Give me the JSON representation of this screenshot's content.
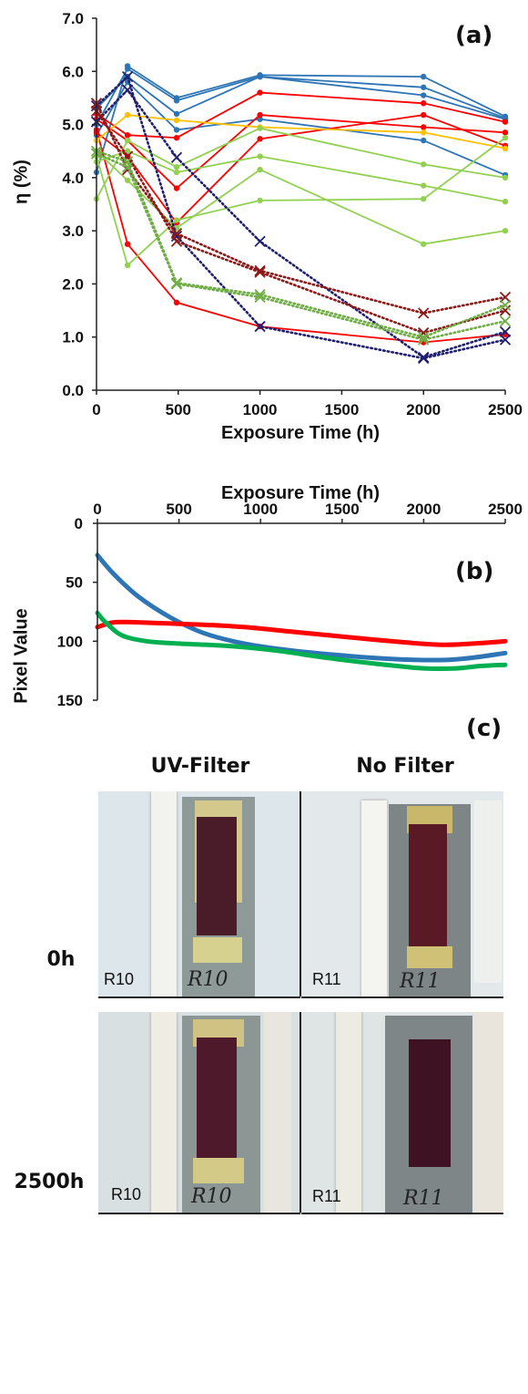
{
  "chart_data": [
    {
      "panel": "(a)",
      "type": "line",
      "xlabel": "Exposure Time (h)",
      "ylabel": "η (%)",
      "xlim": [
        0,
        2500
      ],
      "ylim": [
        0,
        7
      ],
      "xticks": [
        0,
        500,
        1000,
        1500,
        2000,
        2500
      ],
      "yticks": [
        "0.0",
        "1.0",
        "2.0",
        "3.0",
        "4.0",
        "5.0",
        "6.0",
        "7.0"
      ],
      "x": [
        0,
        190,
        490,
        1000,
        2000,
        2500
      ],
      "series": [
        {
          "color": "#2e75b6",
          "style": "solid",
          "values": [
            4.1,
            6.1,
            5.5,
            5.93,
            5.9,
            5.15
          ]
        },
        {
          "color": "#2e75b6",
          "style": "solid",
          "values": [
            5.0,
            6.05,
            5.45,
            5.9,
            5.7,
            5.12
          ]
        },
        {
          "color": "#2e75b6",
          "style": "solid",
          "values": [
            5.3,
            5.9,
            5.2,
            5.9,
            5.55,
            5.1
          ]
        },
        {
          "color": "#2e75b6",
          "style": "solid",
          "values": [
            4.8,
            5.8,
            4.9,
            5.1,
            4.7,
            4.05
          ]
        },
        {
          "color": "#ff0000",
          "style": "solid",
          "values": [
            5.2,
            4.8,
            4.75,
            5.6,
            5.4,
            5.05
          ]
        },
        {
          "color": "#ff0000",
          "style": "solid",
          "values": [
            5.1,
            4.7,
            3.8,
            5.18,
            4.95,
            4.85
          ]
        },
        {
          "color": "#ff0000",
          "style": "solid",
          "values": [
            4.85,
            4.4,
            3.15,
            4.73,
            5.18,
            4.6
          ]
        },
        {
          "color": "#ff0000",
          "style": "solid",
          "values": [
            4.9,
            2.75,
            1.65,
            1.2,
            0.9,
            1.05
          ]
        },
        {
          "color": "#ffc000",
          "style": "solid",
          "values": [
            4.7,
            5.18,
            5.08,
            4.95,
            4.85,
            4.55
          ]
        },
        {
          "color": "#92d050",
          "style": "solid",
          "values": [
            3.6,
            4.7,
            4.2,
            4.93,
            4.25,
            4.0
          ]
        },
        {
          "color": "#92d050",
          "style": "solid",
          "values": [
            4.3,
            4.5,
            4.1,
            4.4,
            3.85,
            3.55
          ]
        },
        {
          "color": "#92d050",
          "style": "solid",
          "values": [
            4.5,
            3.95,
            3.05,
            4.15,
            2.75,
            3.0
          ]
        },
        {
          "color": "#92d050",
          "style": "solid",
          "values": [
            4.4,
            2.35,
            3.2,
            3.57,
            3.6,
            4.75
          ]
        },
        {
          "color": "#1f1f6e",
          "style": "dotted",
          "values": [
            5.05,
            5.65,
            4.38,
            2.8,
            0.62,
            1.1
          ]
        },
        {
          "color": "#1f1f6e",
          "style": "dotted",
          "values": [
            5.35,
            5.9,
            2.9,
            1.2,
            0.6,
            0.95
          ]
        },
        {
          "color": "#8b1a1a",
          "style": "dotted",
          "values": [
            5.4,
            4.15,
            2.95,
            2.25,
            1.45,
            1.75
          ]
        },
        {
          "color": "#8b1a1a",
          "style": "dotted",
          "values": [
            5.25,
            4.4,
            2.8,
            2.22,
            1.08,
            1.5
          ]
        },
        {
          "color": "#70ad47",
          "style": "dotted",
          "values": [
            4.5,
            4.3,
            2.02,
            1.8,
            1.0,
            1.6
          ]
        },
        {
          "color": "#70ad47",
          "style": "dotted",
          "values": [
            4.45,
            4.2,
            2.0,
            1.75,
            0.95,
            1.3
          ]
        }
      ]
    },
    {
      "panel": "(b)",
      "type": "line",
      "xlabel": "Exposure Time (h)",
      "ylabel": "Pixel Value",
      "xlim": [
        0,
        2500
      ],
      "ylim": [
        0,
        150
      ],
      "y_reversed": true,
      "xticks": [
        0,
        500,
        1000,
        1500,
        2000,
        2500
      ],
      "yticks": [
        0,
        50,
        100,
        150
      ],
      "series": [
        {
          "color": "#2e75b6",
          "x": [
            0,
            100,
            250,
            450,
            650,
            900,
            1200,
            1500,
            1800,
            2100,
            2300,
            2500
          ],
          "values": [
            27,
            43,
            62,
            80,
            93,
            102,
            108,
            112,
            115,
            116,
            114,
            110
          ]
        },
        {
          "color": "#ff0000",
          "x": [
            0,
            100,
            250,
            450,
            650,
            900,
            1200,
            1500,
            1800,
            2100,
            2300,
            2500
          ],
          "values": [
            88,
            84,
            84,
            85,
            86,
            88,
            92,
            96,
            100,
            103,
            102,
            100
          ]
        },
        {
          "color": "#00b050",
          "x": [
            0,
            50,
            150,
            300,
            500,
            800,
            1100,
            1400,
            1700,
            2000,
            2200,
            2350,
            2500
          ],
          "values": [
            76,
            84,
            95,
            100,
            102,
            104,
            108,
            114,
            119,
            123,
            123,
            121,
            120
          ]
        }
      ]
    }
  ],
  "panel_c": {
    "label": "(c)",
    "col_headers": [
      "UV-Filter",
      "No Filter"
    ],
    "row_headers": [
      "0h",
      "2500h"
    ],
    "cells": [
      {
        "tag": "R10",
        "handwriting": "R10"
      },
      {
        "tag": "R11",
        "handwriting": "R11"
      },
      {
        "tag": "R10",
        "handwriting": "R10"
      },
      {
        "tag": "R11",
        "handwriting": "R11"
      }
    ]
  }
}
